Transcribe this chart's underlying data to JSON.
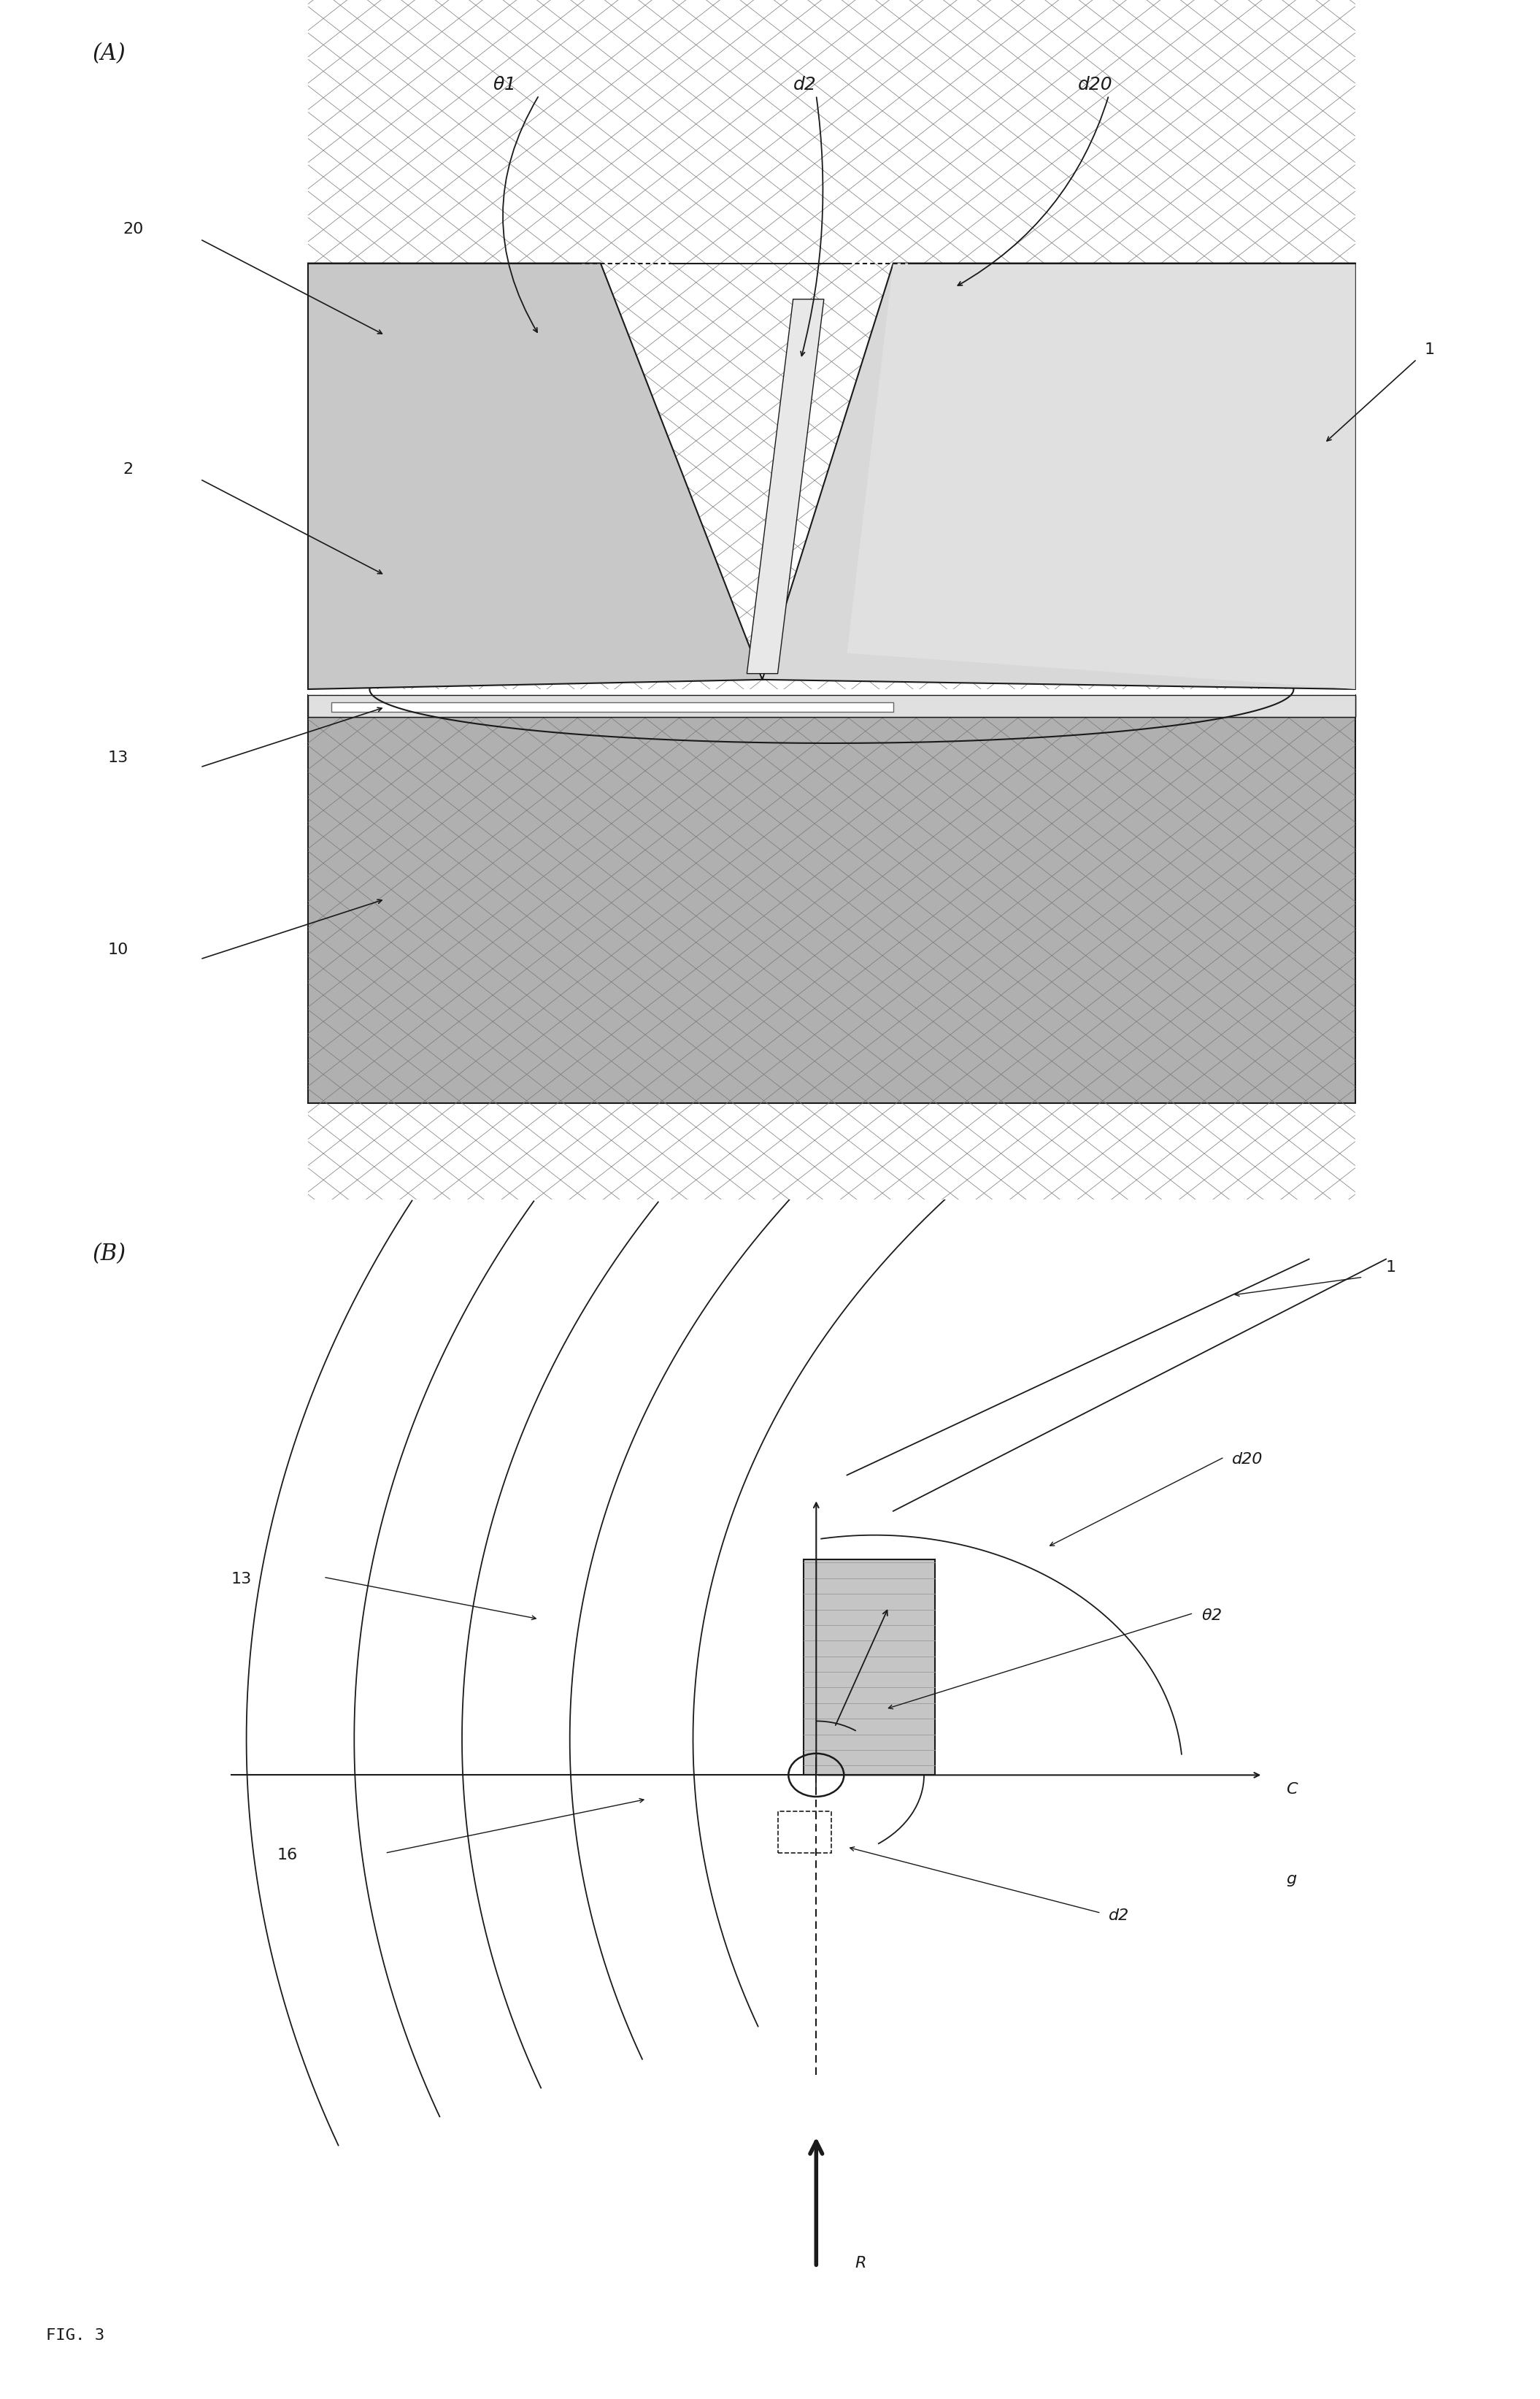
{
  "bg_color": "#ffffff",
  "fig_label": "FIG. 3",
  "panel_A_label": "(A)",
  "panel_B_label": "(B)",
  "lc": "#1a1a1a",
  "gray_light": "#c8c8c8",
  "gray_mid": "#aaaaaa",
  "gray_dark": "#888888",
  "gray_bottom": "#999999",
  "fs_label": 18,
  "fs_num": 16,
  "fs_panel": 22
}
